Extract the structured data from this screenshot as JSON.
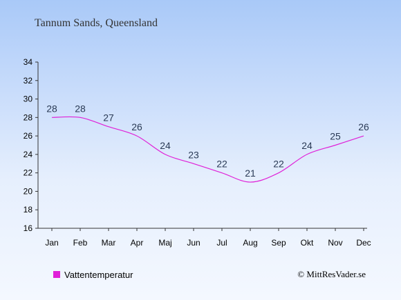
{
  "chart_data": {
    "type": "line",
    "title": "Tannum Sands, Queensland",
    "categories": [
      "Jan",
      "Feb",
      "Mar",
      "Apr",
      "Maj",
      "Jun",
      "Jul",
      "Aug",
      "Sep",
      "Okt",
      "Nov",
      "Dec"
    ],
    "series": [
      {
        "name": "Vattentemperatur",
        "values": [
          28,
          28,
          27,
          26,
          24,
          23,
          22,
          21,
          22,
          24,
          25,
          26
        ],
        "color": "#e020d8"
      }
    ],
    "y_ticks": [
      16,
      18,
      20,
      22,
      24,
      26,
      28,
      30,
      32,
      34
    ],
    "ylim": [
      16,
      34
    ],
    "grid": false,
    "legend_position": "bottom-left",
    "xlabel": "",
    "ylabel": ""
  },
  "copyright": "© MittResVader.se"
}
